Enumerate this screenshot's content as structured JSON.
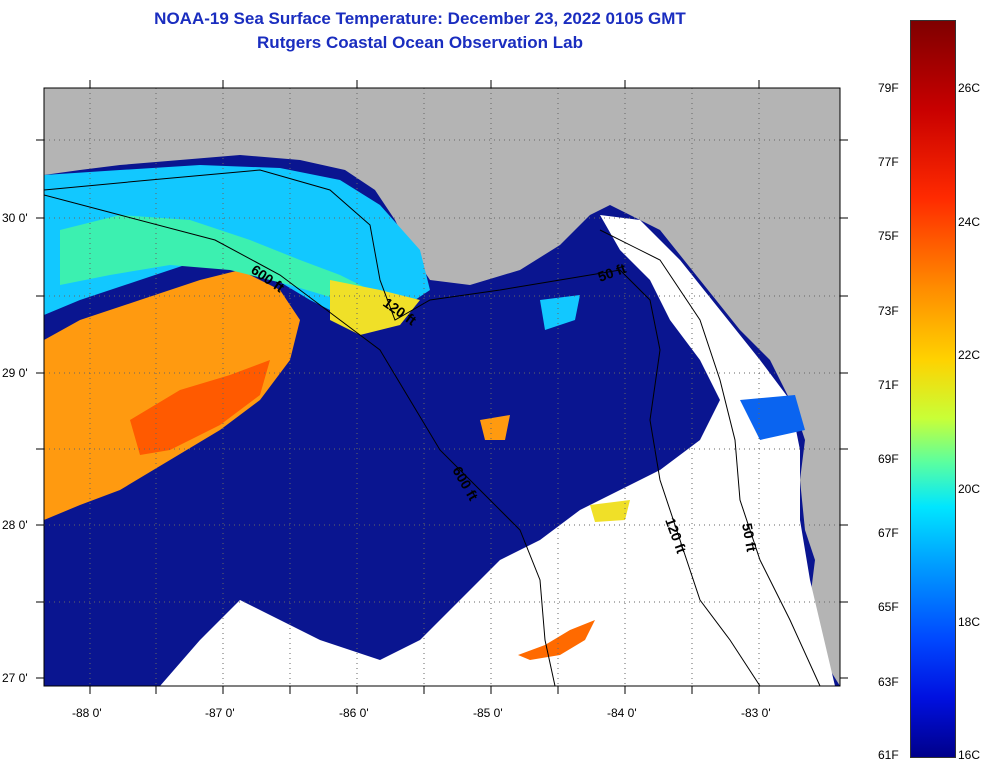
{
  "title": {
    "line1": "NOAA-19 Sea Surface Temperature:  December 23, 2022 0105 GMT",
    "line2": "Rutgers Coastal Ocean Observation Lab"
  },
  "axes": {
    "lat_labels": [
      "30 0'",
      "29 0'",
      "28 0'",
      "27 0'"
    ],
    "lon_labels": [
      "-88 0'",
      "-87 0'",
      "-86 0'",
      "-85 0'",
      "-84 0'",
      "-83 0'"
    ]
  },
  "contours": {
    "c600a": "600 ft",
    "c120a": "120 ft",
    "c50a": "50 ft",
    "c600b": "600 ft",
    "c120b": "120 ft",
    "c50b": "50 ft"
  },
  "colorbar": {
    "f_labels": [
      "79F",
      "77F",
      "75F",
      "73F",
      "71F",
      "69F",
      "67F",
      "65F",
      "63F",
      "61F"
    ],
    "c_labels": [
      "26C",
      "24C",
      "22C",
      "20C",
      "18C",
      "16C"
    ]
  },
  "colors": {
    "land": "#b4b4b4",
    "cloud": "#ffffff",
    "cold_water": "#0a1590",
    "title": "#1a2dbf"
  }
}
